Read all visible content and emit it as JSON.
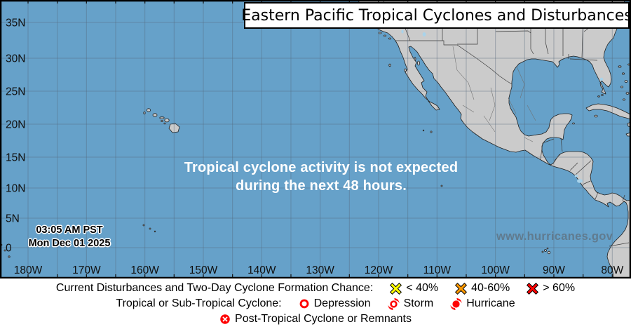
{
  "title": "Eastern Pacific Tropical Cyclones and Disturbances",
  "map": {
    "message_line1": "Tropical cyclone activity is not expected",
    "message_line2": "during the next 48 hours.",
    "timestamp_line1": "03:05 AM PST",
    "timestamp_line2": "Mon Dec 01 2025",
    "watermark": "www.hurricanes.gov",
    "lat_labels": [
      "35N",
      "30N",
      "25N",
      "20N",
      "15N",
      "10N",
      "5N",
      "0"
    ],
    "lon_labels": [
      "180W",
      "170W",
      "160W",
      "150W",
      "140W",
      "130W",
      "120W",
      "110W",
      "100W",
      "90W",
      "80W"
    ],
    "colors": {
      "ocean": "#66a1c9",
      "land": "#cbcbcb",
      "lake": "#a9d3ea",
      "grid": "#53677a",
      "watermark": "#5f7585"
    }
  },
  "legend": {
    "line1_label": "Current Disturbances and Two-Day Cyclone Formation Chance:",
    "items_line1": [
      {
        "icon": "yellow-x",
        "label": "< 40%",
        "color": "#ffff00"
      },
      {
        "icon": "orange-x",
        "label": "40-60%",
        "color": "#ff9900"
      },
      {
        "icon": "red-x",
        "label": "> 60%",
        "color": "#ff0000"
      }
    ],
    "line2_label": "Tropical or Sub-Tropical Cyclone:",
    "items_line2": [
      {
        "icon": "depression-circle",
        "label": "Depression"
      },
      {
        "icon": "tropical-storm",
        "label": "Storm"
      },
      {
        "icon": "hurricane",
        "label": "Hurricane"
      }
    ],
    "line3_item": {
      "icon": "post-tropical-circle-x",
      "label": "Post-Tropical Cyclone or Remnants"
    },
    "cyclone_color": "#ff0000"
  }
}
